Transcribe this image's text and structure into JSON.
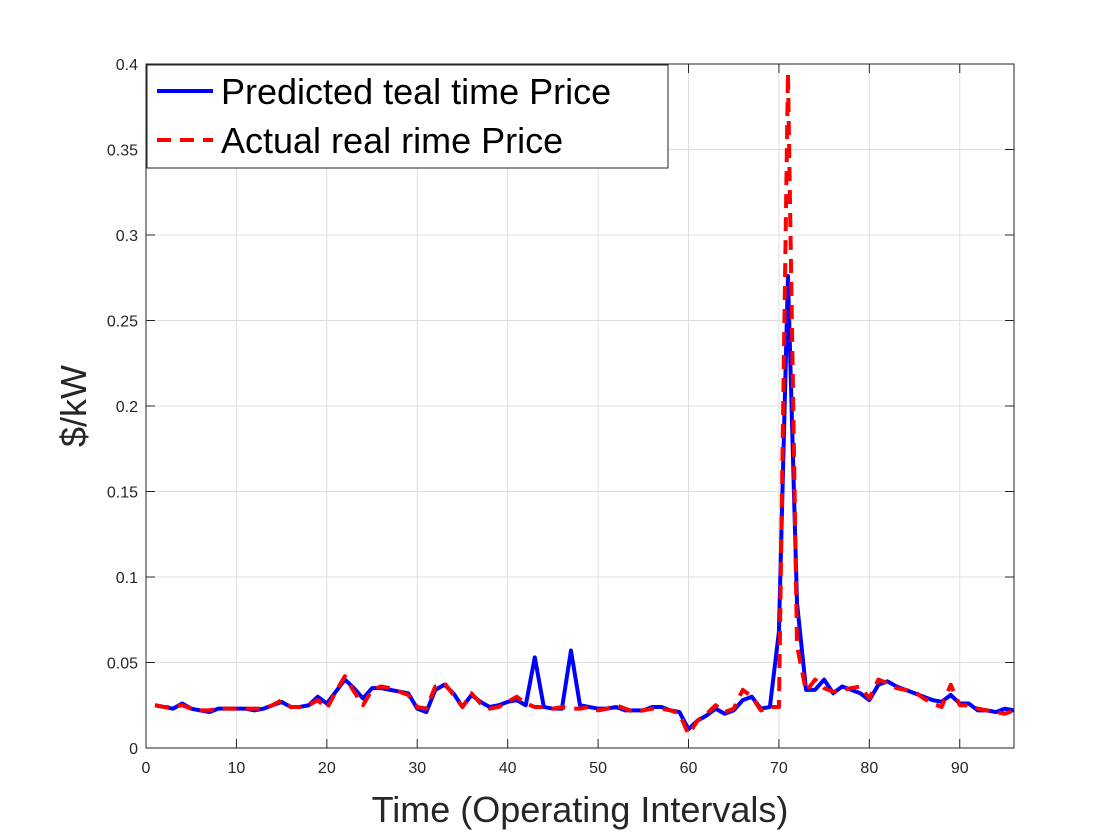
{
  "chart_data": {
    "type": "line",
    "xlabel": "Time (Operating Intervals)",
    "ylabel": "$/kW",
    "xlim": [
      0,
      96
    ],
    "ylim": [
      0,
      0.4
    ],
    "xticks": [
      0,
      10,
      20,
      30,
      40,
      50,
      60,
      70,
      80,
      90
    ],
    "yticks": [
      0,
      0.05,
      0.1,
      0.15,
      0.2,
      0.25,
      0.3,
      0.35,
      0.4
    ],
    "ytick_labels": [
      "0",
      "0.05",
      "0.1",
      "0.15",
      "0.2",
      "0.25",
      "0.3",
      "0.35",
      "0.4"
    ],
    "grid": true,
    "legend_position": "top-left",
    "x": [
      1,
      2,
      3,
      4,
      5,
      6,
      7,
      8,
      9,
      10,
      11,
      12,
      13,
      14,
      15,
      16,
      17,
      18,
      19,
      20,
      21,
      22,
      23,
      24,
      25,
      26,
      27,
      28,
      29,
      30,
      31,
      32,
      33,
      34,
      35,
      36,
      37,
      38,
      39,
      40,
      41,
      42,
      43,
      44,
      45,
      46,
      47,
      48,
      49,
      50,
      51,
      52,
      53,
      54,
      55,
      56,
      57,
      58,
      59,
      60,
      61,
      62,
      63,
      64,
      65,
      66,
      67,
      68,
      69,
      70,
      71,
      72,
      73,
      74,
      75,
      76,
      77,
      78,
      79,
      80,
      81,
      82,
      83,
      84,
      85,
      86,
      87,
      88,
      89,
      90,
      91,
      92,
      93,
      94,
      95,
      96
    ],
    "series": [
      {
        "name": "Predicted teal time Price",
        "color": "#0000ff",
        "style": "solid",
        "values": [
          0.025,
          0.024,
          0.023,
          0.026,
          0.023,
          0.022,
          0.021,
          0.023,
          0.023,
          0.023,
          0.023,
          0.022,
          0.023,
          0.025,
          0.027,
          0.024,
          0.024,
          0.025,
          0.03,
          0.026,
          0.033,
          0.04,
          0.035,
          0.029,
          0.035,
          0.035,
          0.034,
          0.033,
          0.032,
          0.023,
          0.021,
          0.034,
          0.037,
          0.032,
          0.024,
          0.031,
          0.027,
          0.024,
          0.025,
          0.027,
          0.028,
          0.025,
          0.053,
          0.024,
          0.023,
          0.023,
          0.057,
          0.025,
          0.024,
          0.023,
          0.023,
          0.024,
          0.022,
          0.022,
          0.022,
          0.024,
          0.024,
          0.022,
          0.021,
          0.011,
          0.016,
          0.019,
          0.023,
          0.02,
          0.022,
          0.028,
          0.03,
          0.023,
          0.024,
          0.068,
          0.276,
          0.085,
          0.034,
          0.034,
          0.04,
          0.032,
          0.036,
          0.034,
          0.032,
          0.028,
          0.037,
          0.039,
          0.036,
          0.034,
          0.032,
          0.03,
          0.028,
          0.027,
          0.031,
          0.026,
          0.026,
          0.022,
          0.022,
          0.021,
          0.023,
          0.022
        ]
      },
      {
        "name": "Actual real rime Price",
        "color": "#ff0000",
        "style": "dashed",
        "values": [
          0.025,
          0.024,
          0.024,
          0.025,
          0.023,
          0.022,
          0.022,
          0.023,
          0.023,
          0.023,
          0.023,
          0.023,
          0.023,
          0.025,
          0.028,
          0.024,
          0.024,
          0.025,
          0.028,
          0.023,
          0.033,
          0.042,
          0.033,
          0.025,
          0.034,
          0.036,
          0.035,
          0.033,
          0.031,
          0.024,
          0.023,
          0.036,
          0.038,
          0.031,
          0.024,
          0.032,
          0.026,
          0.023,
          0.024,
          0.027,
          0.03,
          0.026,
          0.024,
          0.024,
          0.023,
          0.024,
          0.023,
          0.023,
          0.024,
          0.022,
          0.023,
          0.025,
          0.023,
          0.021,
          0.022,
          0.023,
          0.023,
          0.022,
          0.02,
          0.008,
          0.016,
          0.02,
          0.025,
          0.021,
          0.023,
          0.034,
          0.03,
          0.022,
          0.024,
          0.024,
          0.395,
          0.06,
          0.033,
          0.04,
          0.035,
          0.033,
          0.034,
          0.035,
          0.036,
          0.029,
          0.04,
          0.038,
          0.035,
          0.034,
          0.033,
          0.029,
          0.026,
          0.024,
          0.037,
          0.025,
          0.025,
          0.023,
          0.022,
          0.021,
          0.02,
          0.022
        ]
      }
    ]
  }
}
